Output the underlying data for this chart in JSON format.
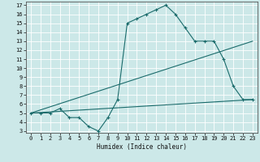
{
  "xlabel": "Humidex (Indice chaleur)",
  "xlim": [
    -0.5,
    23.5
  ],
  "ylim": [
    2.8,
    17.4
  ],
  "xticks": [
    0,
    1,
    2,
    3,
    4,
    5,
    6,
    7,
    8,
    9,
    10,
    11,
    12,
    13,
    14,
    15,
    16,
    17,
    18,
    19,
    20,
    21,
    22,
    23
  ],
  "yticks": [
    3,
    4,
    5,
    6,
    7,
    8,
    9,
    10,
    11,
    12,
    13,
    14,
    15,
    16,
    17
  ],
  "bg_color": "#cce8e8",
  "grid_color": "#ffffff",
  "line_color": "#1a6b6b",
  "line1_x": [
    0,
    1,
    2,
    3,
    4,
    5,
    6,
    7,
    8,
    9,
    10,
    11,
    12,
    13,
    14,
    15,
    16,
    17,
    18,
    19,
    20,
    21,
    22,
    23
  ],
  "line1_y": [
    5,
    5,
    5,
    5.5,
    4.5,
    4.5,
    3.5,
    3,
    4.5,
    6.5,
    15,
    15.5,
    16,
    16.5,
    17,
    16,
    14.5,
    13,
    13,
    13,
    11,
    8,
    6.5,
    6.5
  ],
  "line2_x": [
    0,
    23
  ],
  "line2_y": [
    5,
    13
  ],
  "line3_x": [
    0,
    23
  ],
  "line3_y": [
    5,
    6.5
  ]
}
